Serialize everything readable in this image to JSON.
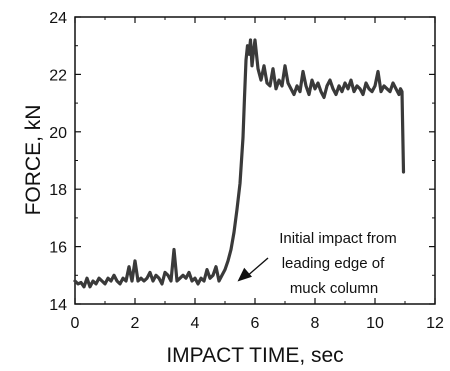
{
  "chart_data": {
    "type": "line",
    "xlabel": "IMPACT TIME, sec",
    "ylabel": "FORCE, kN",
    "xlim": [
      0,
      12
    ],
    "ylim": [
      14,
      24
    ],
    "xticks": [
      "0",
      "2",
      "4",
      "6",
      "8",
      "10",
      "12"
    ],
    "yticks": [
      "14",
      "16",
      "18",
      "20",
      "22",
      "24"
    ],
    "grid": false,
    "annotation": {
      "lines": [
        "Initial impact from",
        "leading edge of",
        "muck column"
      ],
      "arrow_target": [
        5.35,
        14.75
      ]
    },
    "series": [
      {
        "color": "#3a3a3a",
        "x": [
          0.0,
          0.1,
          0.2,
          0.3,
          0.4,
          0.5,
          0.6,
          0.7,
          0.8,
          0.9,
          1.0,
          1.1,
          1.2,
          1.3,
          1.4,
          1.5,
          1.6,
          1.7,
          1.8,
          1.9,
          2.0,
          2.1,
          2.2,
          2.3,
          2.4,
          2.5,
          2.6,
          2.7,
          2.8,
          2.9,
          3.0,
          3.1,
          3.2,
          3.3,
          3.4,
          3.5,
          3.6,
          3.7,
          3.8,
          3.9,
          4.0,
          4.1,
          4.2,
          4.3,
          4.4,
          4.5,
          4.6,
          4.7,
          4.8,
          4.9,
          5.0,
          5.1,
          5.2,
          5.3,
          5.4,
          5.5,
          5.55,
          5.6,
          5.65,
          5.7,
          5.75,
          5.8,
          5.85,
          5.9,
          5.95,
          6.0,
          6.1,
          6.2,
          6.3,
          6.4,
          6.5,
          6.6,
          6.7,
          6.8,
          6.9,
          7.0,
          7.1,
          7.2,
          7.3,
          7.4,
          7.5,
          7.6,
          7.7,
          7.8,
          7.9,
          8.0,
          8.1,
          8.2,
          8.3,
          8.4,
          8.5,
          8.6,
          8.7,
          8.8,
          8.9,
          9.0,
          9.1,
          9.2,
          9.3,
          9.4,
          9.5,
          9.6,
          9.7,
          9.8,
          9.9,
          10.0,
          10.1,
          10.2,
          10.3,
          10.4,
          10.5,
          10.6,
          10.7,
          10.8,
          10.85,
          10.9,
          10.95
        ],
        "y": [
          14.8,
          14.7,
          14.75,
          14.6,
          14.9,
          14.6,
          14.8,
          14.7,
          14.9,
          14.8,
          14.7,
          14.9,
          14.8,
          15.0,
          14.8,
          14.7,
          14.9,
          14.8,
          15.3,
          14.8,
          15.5,
          14.8,
          14.9,
          14.8,
          14.9,
          15.1,
          14.8,
          15.0,
          14.9,
          14.7,
          15.1,
          15.0,
          14.8,
          15.9,
          14.8,
          14.9,
          15.0,
          14.9,
          15.1,
          14.8,
          14.9,
          14.7,
          14.9,
          14.8,
          15.2,
          14.9,
          15.0,
          15.3,
          14.8,
          15.0,
          15.2,
          15.5,
          15.9,
          16.5,
          17.3,
          18.2,
          19.0,
          19.8,
          21.2,
          22.5,
          23.0,
          22.7,
          23.2,
          22.3,
          22.8,
          23.2,
          22.2,
          21.8,
          22.3,
          21.7,
          21.6,
          22.2,
          21.5,
          21.8,
          21.6,
          22.3,
          21.7,
          21.5,
          21.3,
          21.6,
          21.4,
          22.1,
          21.6,
          21.3,
          21.8,
          21.5,
          21.7,
          21.4,
          21.2,
          21.6,
          21.8,
          21.5,
          21.3,
          21.6,
          21.4,
          21.7,
          21.5,
          21.8,
          21.4,
          21.6,
          21.5,
          21.3,
          21.7,
          21.5,
          21.4,
          21.6,
          22.1,
          21.4,
          21.6,
          21.5,
          21.4,
          21.7,
          21.5,
          21.3,
          21.5,
          21.4,
          18.6
        ]
      }
    ]
  }
}
